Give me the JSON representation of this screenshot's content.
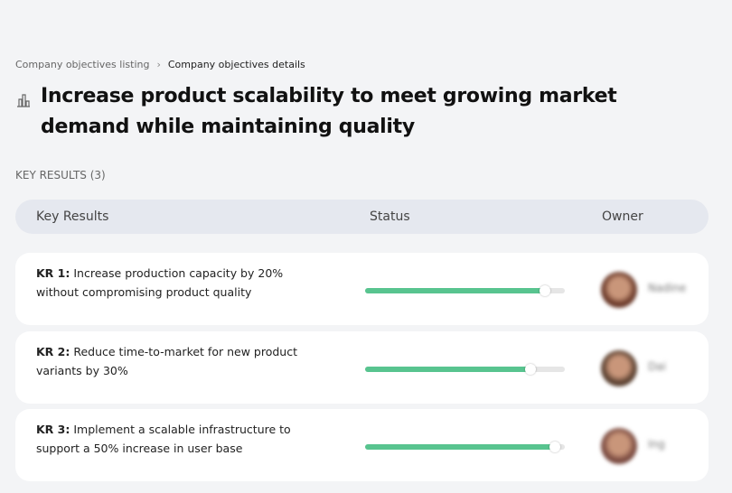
{
  "breadcrumb": {
    "items": [
      "Company objectives listing",
      "Company objectives details"
    ]
  },
  "objective": {
    "icon": "building-chart-icon",
    "title": "Increase product scalability to meet growing market demand while maintaining quality"
  },
  "section_label": "KEY RESULTS (3)",
  "table": {
    "headers": [
      "Key Results",
      "Status",
      "Owner"
    ],
    "rows": [
      {
        "prefix": "KR 1:",
        "text": " Increase production capacity by 20% without compromising product quality",
        "progress": 0.9,
        "owner": "Nadine",
        "avatar_color": "#6b3a2a"
      },
      {
        "prefix": "KR 2:",
        "text": " Reduce time-to-market for new product variants by 30%",
        "progress": 0.83,
        "owner": "Dai",
        "avatar_color": "#5a4030"
      },
      {
        "prefix": "KR 3:",
        "text": " Implement a scalable infrastructure to support a 50% increase in user base",
        "progress": 0.95,
        "owner": "Ing",
        "avatar_color": "#7a4a40"
      }
    ]
  },
  "colors": {
    "progress": "#58c48f",
    "track": "#e6e6e6"
  }
}
